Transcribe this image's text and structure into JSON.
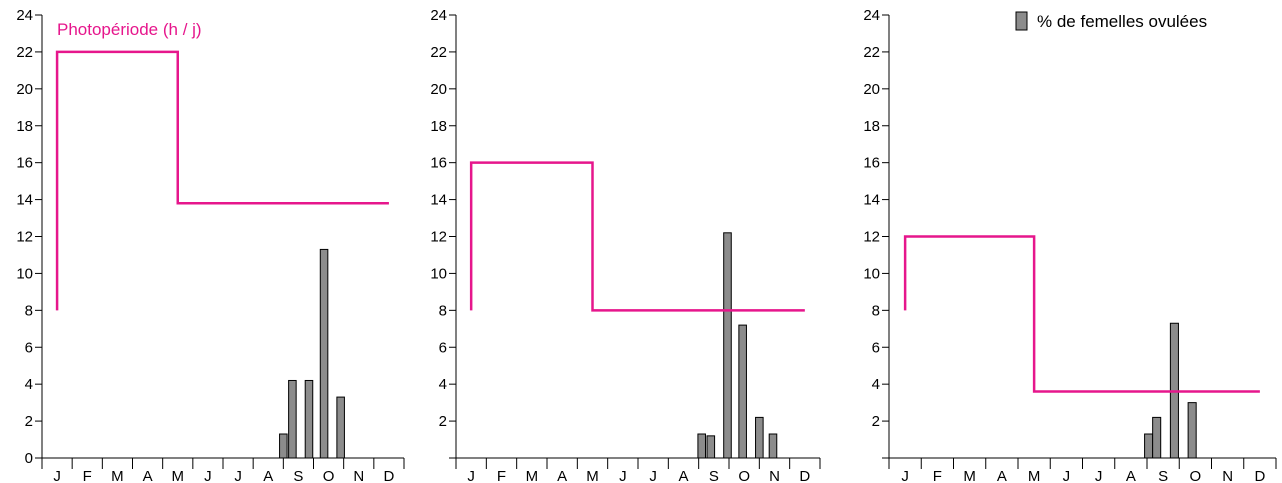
{
  "colors": {
    "photoperiod": "#e6168c",
    "bar_fill": "#8c8c8c",
    "bar_stroke": "#000000",
    "axis": "#000000"
  },
  "legend": {
    "bar_label": "% de femelles ovulées",
    "icon": "gray-square-icon"
  },
  "photoperiod_label": "Photopériode (h / j)",
  "chart_data": [
    {
      "type": "bar+line",
      "categories": [
        "J",
        "F",
        "M",
        "A",
        "M",
        "J",
        "J",
        "A",
        "S",
        "O",
        "N",
        "D"
      ],
      "ylim": [
        0,
        24
      ],
      "yticks": [
        "0",
        "2",
        "4",
        "6",
        "8",
        "10",
        "12",
        "14",
        "16",
        "18",
        "20",
        "22",
        "24"
      ],
      "grid": false,
      "photoperiod": {
        "label": "Photopériode (h / j)",
        "start_month": 0.5,
        "switch_month": 4.5,
        "end_month": 11.5,
        "start_value": 8,
        "high_value": 22,
        "low_value": 13.8
      },
      "bars": [
        {
          "x": 8.0,
          "value": 1.3
        },
        {
          "x": 8.3,
          "value": 4.2
        },
        {
          "x": 8.85,
          "value": 4.2
        },
        {
          "x": 9.35,
          "value": 11.3
        },
        {
          "x": 9.9,
          "value": 3.3
        }
      ]
    },
    {
      "type": "bar+line",
      "categories": [
        "J",
        "F",
        "M",
        "A",
        "M",
        "J",
        "J",
        "A",
        "S",
        "O",
        "N",
        "D"
      ],
      "ylim": [
        0,
        24
      ],
      "yticks": [
        "",
        "2",
        "4",
        "6",
        "8",
        "10",
        "12",
        "14",
        "16",
        "18",
        "20",
        "22",
        "24"
      ],
      "grid": false,
      "photoperiod": {
        "start_month": 0.5,
        "switch_month": 4.5,
        "end_month": 11.5,
        "start_value": 8,
        "high_value": 16,
        "low_value": 8
      },
      "bars": [
        {
          "x": 8.1,
          "value": 1.3
        },
        {
          "x": 8.4,
          "value": 1.2
        },
        {
          "x": 8.95,
          "value": 12.2
        },
        {
          "x": 9.45,
          "value": 7.2
        },
        {
          "x": 10.0,
          "value": 2.2
        },
        {
          "x": 10.45,
          "value": 1.3
        }
      ]
    },
    {
      "type": "bar+line",
      "categories": [
        "J",
        "F",
        "M",
        "A",
        "M",
        "J",
        "J",
        "A",
        "S",
        "O",
        "N",
        "D"
      ],
      "ylim": [
        0,
        24
      ],
      "yticks": [
        "",
        "2",
        "4",
        "6",
        "8",
        "10",
        "12",
        "14",
        "16",
        "18",
        "20",
        "22",
        "24"
      ],
      "grid": false,
      "photoperiod": {
        "start_month": 0.5,
        "switch_month": 4.5,
        "end_month": 11.5,
        "start_value": 8,
        "high_value": 12,
        "low_value": 3.6
      },
      "bars": [
        {
          "x": 8.05,
          "value": 1.3
        },
        {
          "x": 8.3,
          "value": 2.2
        },
        {
          "x": 8.85,
          "value": 7.3
        },
        {
          "x": 9.4,
          "value": 3.0
        }
      ]
    }
  ]
}
